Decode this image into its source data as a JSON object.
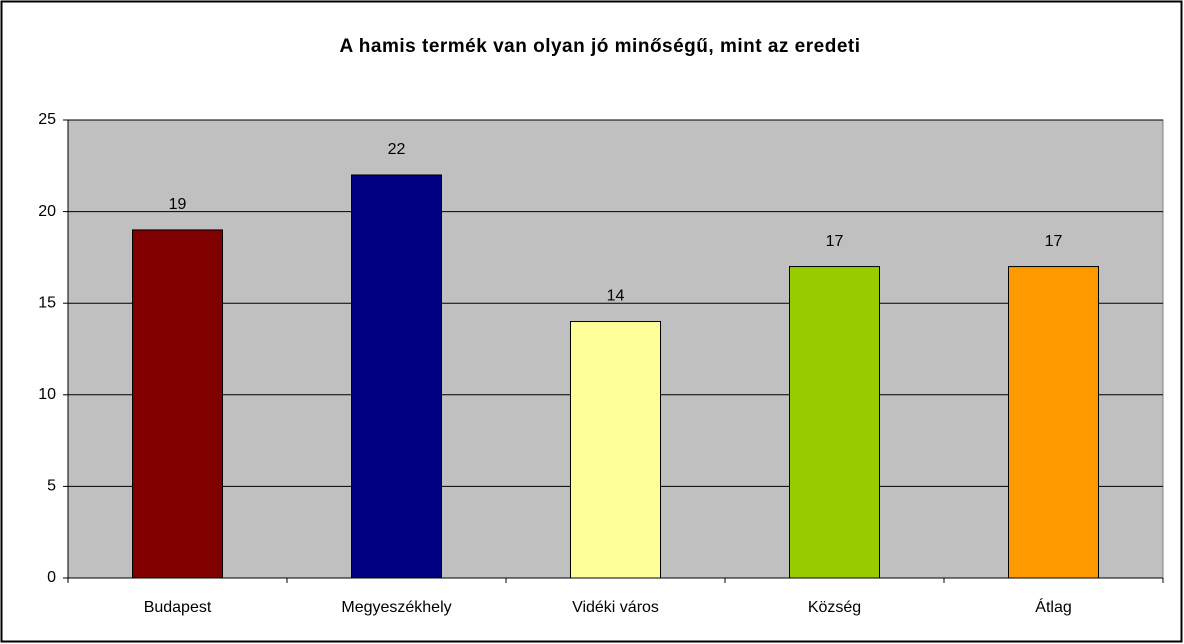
{
  "chart_data": {
    "type": "bar",
    "title": "A hamis termék van olyan jó minőségű, mint az eredeti",
    "categories": [
      "Budapest",
      "Megyeszékhely",
      "Vidéki város",
      "Község",
      "Átlag"
    ],
    "values": [
      19,
      22,
      14,
      17,
      17
    ],
    "colors": [
      "#800000",
      "#000080",
      "#ffff99",
      "#99cc00",
      "#ff9900"
    ],
    "ylim": [
      0,
      25
    ],
    "yticks": [
      0,
      5,
      10,
      15,
      20,
      25
    ],
    "grid": true
  }
}
